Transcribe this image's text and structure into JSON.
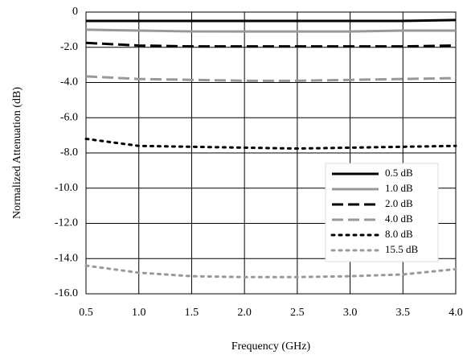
{
  "chart_data": {
    "type": "line",
    "x_label": "Frequency (GHz)",
    "y_label": "Normalized Attenuation (dB)",
    "x": [
      0.5,
      1.0,
      1.5,
      2.0,
      2.5,
      3.0,
      3.5,
      4.0
    ],
    "series": [
      {
        "name": "0.5 dB",
        "color": "#000000",
        "dash": "solid",
        "values": [
          -0.5,
          -0.5,
          -0.5,
          -0.5,
          -0.5,
          -0.5,
          -0.5,
          -0.45
        ]
      },
      {
        "name": "1.0 dB",
        "color": "#999999",
        "dash": "solid",
        "values": [
          -1.0,
          -1.05,
          -1.1,
          -1.1,
          -1.1,
          -1.1,
          -1.05,
          -1.05
        ]
      },
      {
        "name": "2.0 dB",
        "color": "#000000",
        "dash": "dashed",
        "values": [
          -1.75,
          -1.9,
          -1.95,
          -1.95,
          -1.95,
          -1.95,
          -1.95,
          -1.9
        ]
      },
      {
        "name": "4.0 dB",
        "color": "#999999",
        "dash": "dashed",
        "values": [
          -3.65,
          -3.8,
          -3.85,
          -3.9,
          -3.9,
          -3.85,
          -3.8,
          -3.75
        ]
      },
      {
        "name": "8.0 dB",
        "color": "#000000",
        "dash": "dotted",
        "values": [
          -7.2,
          -7.6,
          -7.65,
          -7.7,
          -7.75,
          -7.7,
          -7.65,
          -7.6
        ]
      },
      {
        "name": "15.5 dB",
        "color": "#999999",
        "dash": "dotted",
        "values": [
          -14.4,
          -14.8,
          -15.0,
          -15.05,
          -15.05,
          -15.0,
          -14.9,
          -14.6
        ]
      }
    ],
    "xlim": [
      0.5,
      4.0
    ],
    "xticks": [
      0.5,
      {
        "value": 1,
        "label": "1.0"
      },
      1.5,
      {
        "value": 2,
        "label": "2.0"
      },
      2.5,
      {
        "value": 3,
        "label": "3.0"
      },
      3.5,
      {
        "value": 4,
        "label": "4.0"
      }
    ],
    "ylim": [
      -16,
      0
    ],
    "yticks": [
      0,
      {
        "value": -2,
        "label": "-2.0"
      },
      {
        "value": -4,
        "label": "-4.0"
      },
      {
        "value": -6,
        "label": "-6.0"
      },
      {
        "value": -8,
        "label": "-8.0"
      },
      {
        "value": -10,
        "label": "-10.0"
      },
      {
        "value": -12,
        "label": "-12.0"
      },
      {
        "value": -14,
        "label": "-14.0"
      },
      {
        "value": -16,
        "label": "-16.0"
      }
    ],
    "grid": true,
    "legend": "lower right"
  }
}
